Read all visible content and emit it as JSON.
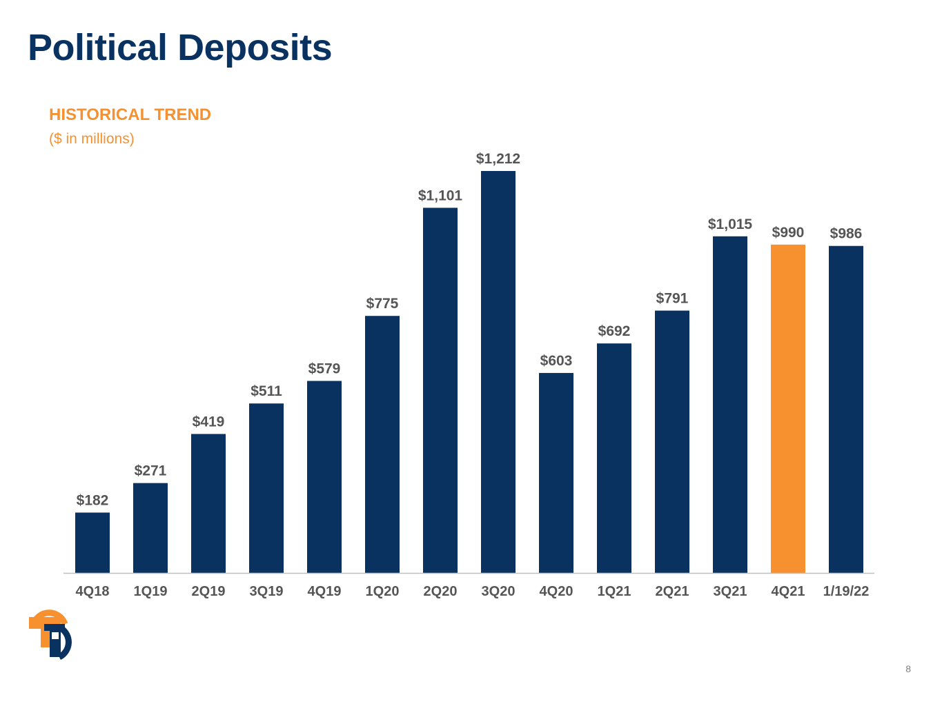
{
  "page": {
    "title": "Political Deposits",
    "section_heading": "HISTORICAL TREND",
    "section_subheading": "($ in millions)",
    "page_number": "8"
  },
  "colors": {
    "title": "#0a3261",
    "accent": "#f7902f",
    "bar": "#0a3261",
    "highlight_bar": "#f7902f",
    "label_text": "#555555",
    "axis_line": "#bfbfbf"
  },
  "logo": {
    "icon": "company-logo-icon"
  },
  "chart_data": {
    "type": "bar",
    "title": "HISTORICAL TREND",
    "subtitle": "($ in millions)",
    "xlabel": "",
    "ylabel": "",
    "categories": [
      "4Q18",
      "1Q19",
      "2Q19",
      "3Q19",
      "4Q19",
      "1Q20",
      "2Q20",
      "3Q20",
      "4Q20",
      "1Q21",
      "2Q21",
      "3Q21",
      "4Q21",
      "1/19/22"
    ],
    "values": [
      182,
      271,
      419,
      511,
      579,
      775,
      1101,
      1212,
      603,
      692,
      791,
      1015,
      990,
      986
    ],
    "data_labels": [
      "$182",
      "$271",
      "$419",
      "$511",
      "$579",
      "$775",
      "$1,101",
      "$1,212",
      "$603",
      "$692",
      "$791",
      "$1,015",
      "$990",
      "$986"
    ],
    "highlight_category": "4Q21",
    "ylim": [
      0,
      1212
    ],
    "grid": false,
    "legend": "none"
  }
}
